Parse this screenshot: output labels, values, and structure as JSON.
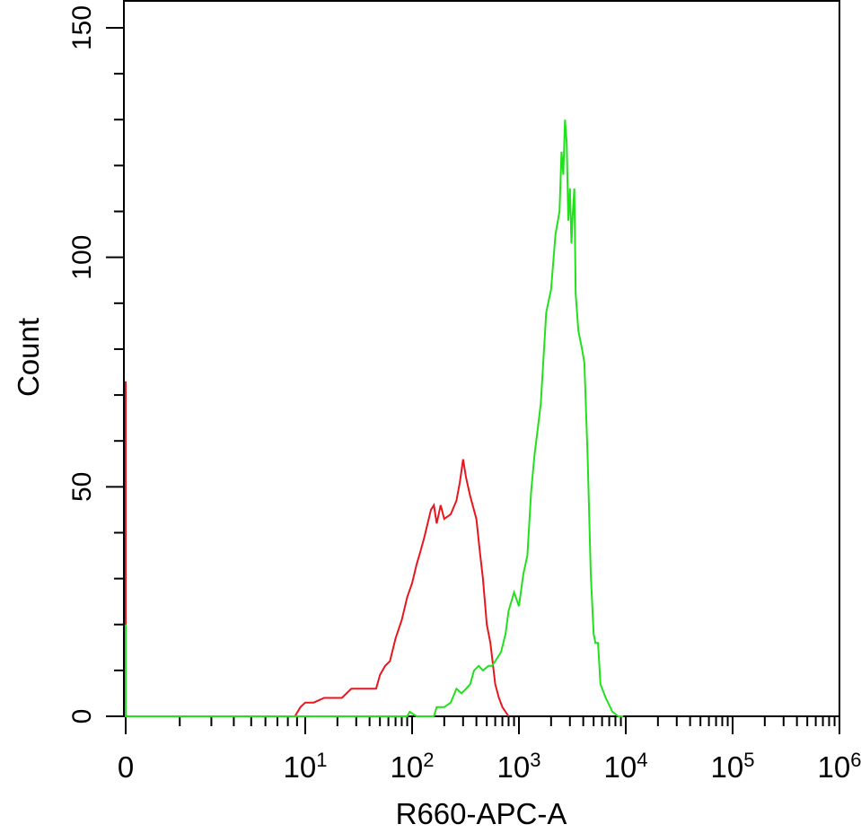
{
  "chart_data": {
    "type": "line",
    "title": "",
    "xlabel": "R660-APC-A",
    "ylabel": "Count",
    "x_scale": "biexponential",
    "ylim": [
      0,
      150
    ],
    "y_ticks": [
      {
        "value": 0,
        "label": "0"
      },
      {
        "value": 50,
        "label": "50"
      },
      {
        "value": 100,
        "label": "100"
      },
      {
        "value": 150,
        "label": "150"
      }
    ],
    "x_ticks": [
      {
        "value": 0,
        "label": "0",
        "exp": ""
      },
      {
        "value": 10,
        "label": "10",
        "exp": "1"
      },
      {
        "value": 100,
        "label": "10",
        "exp": "2"
      },
      {
        "value": 1000,
        "label": "10",
        "exp": "3"
      },
      {
        "value": 10000,
        "label": "10",
        "exp": "4"
      },
      {
        "value": 100000,
        "label": "10",
        "exp": "5"
      },
      {
        "value": 1000000,
        "label": "10",
        "exp": "6"
      }
    ],
    "grid": false,
    "legend": "none",
    "series": [
      {
        "color": "#e8161e",
        "points": [
          [
            0,
            0
          ],
          [
            0,
            73
          ],
          [
            0,
            0
          ],
          [
            8,
            0
          ],
          [
            9,
            2
          ],
          [
            10,
            3
          ],
          [
            12,
            3
          ],
          [
            15,
            4
          ],
          [
            18,
            4
          ],
          [
            22,
            4
          ],
          [
            27,
            6
          ],
          [
            33,
            6
          ],
          [
            40,
            6
          ],
          [
            46,
            6
          ],
          [
            50,
            9
          ],
          [
            56,
            11
          ],
          [
            62,
            12
          ],
          [
            70,
            17
          ],
          [
            80,
            21
          ],
          [
            90,
            26
          ],
          [
            100,
            29
          ],
          [
            110,
            33
          ],
          [
            120,
            36
          ],
          [
            130,
            39
          ],
          [
            150,
            45
          ],
          [
            160,
            46
          ],
          [
            170,
            42
          ],
          [
            185,
            46
          ],
          [
            200,
            43
          ],
          [
            230,
            44
          ],
          [
            260,
            47
          ],
          [
            280,
            51
          ],
          [
            300,
            56
          ],
          [
            320,
            52
          ],
          [
            350,
            48
          ],
          [
            400,
            43
          ],
          [
            430,
            36
          ],
          [
            460,
            30
          ],
          [
            500,
            20
          ],
          [
            540,
            16
          ],
          [
            600,
            7
          ],
          [
            650,
            4
          ],
          [
            700,
            2
          ],
          [
            800,
            0
          ]
        ]
      },
      {
        "color": "#22e01c",
        "points": [
          [
            0,
            0
          ],
          [
            0,
            20
          ],
          [
            0,
            0
          ],
          [
            90,
            0
          ],
          [
            95,
            1
          ],
          [
            110,
            0
          ],
          [
            160,
            0
          ],
          [
            170,
            2
          ],
          [
            200,
            2
          ],
          [
            230,
            3
          ],
          [
            260,
            6
          ],
          [
            290,
            5
          ],
          [
            320,
            6
          ],
          [
            350,
            7
          ],
          [
            380,
            10
          ],
          [
            420,
            11
          ],
          [
            460,
            10
          ],
          [
            520,
            11
          ],
          [
            560,
            11
          ],
          [
            600,
            12
          ],
          [
            680,
            14
          ],
          [
            750,
            18
          ],
          [
            800,
            23
          ],
          [
            900,
            27
          ],
          [
            1000,
            24
          ],
          [
            1100,
            31
          ],
          [
            1200,
            35
          ],
          [
            1300,
            49
          ],
          [
            1400,
            57
          ],
          [
            1600,
            68
          ],
          [
            1800,
            88
          ],
          [
            2000,
            93
          ],
          [
            2200,
            105
          ],
          [
            2400,
            110
          ],
          [
            2500,
            123
          ],
          [
            2600,
            118
          ],
          [
            2700,
            130
          ],
          [
            2800,
            125
          ],
          [
            2900,
            108
          ],
          [
            3000,
            115
          ],
          [
            3100,
            103
          ],
          [
            3200,
            110
          ],
          [
            3300,
            115
          ],
          [
            3400,
            92
          ],
          [
            3600,
            84
          ],
          [
            3900,
            80
          ],
          [
            4100,
            77
          ],
          [
            4400,
            56
          ],
          [
            4700,
            31
          ],
          [
            5000,
            18
          ],
          [
            5200,
            16
          ],
          [
            5500,
            16
          ],
          [
            5800,
            7
          ],
          [
            6500,
            4
          ],
          [
            7500,
            1
          ],
          [
            8500,
            0
          ],
          [
            9500,
            0
          ]
        ]
      }
    ]
  }
}
